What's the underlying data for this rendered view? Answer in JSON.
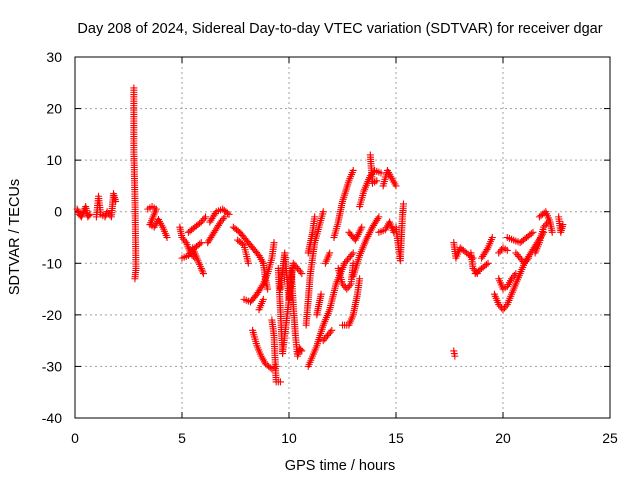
{
  "chart_data": {
    "type": "scatter",
    "title": "Day 208 of 2024, Sidereal Day-to-day VTEC variation (SDTVAR) for receiver dgar",
    "xlabel": "GPS time / hours",
    "ylabel": "SDTVAR / TECUs",
    "xlim": [
      0,
      25
    ],
    "ylim": [
      -40,
      30
    ],
    "xticks": [
      0,
      5,
      10,
      15,
      20,
      25
    ],
    "yticks": [
      -40,
      -30,
      -20,
      -10,
      0,
      10,
      20,
      30
    ],
    "xtick_labels": [
      "0",
      "5",
      "10",
      "15",
      "20",
      "25"
    ],
    "ytick_labels": [
      "-40",
      "-30",
      "-20",
      "-10",
      "0",
      "10",
      "20",
      "30"
    ],
    "grid": true,
    "marker": "+",
    "color": "#ff0000",
    "series": [
      {
        "name": "SDTVAR",
        "segments": [
          [
            [
              0.1,
              0.5
            ],
            [
              0.2,
              -0.5
            ],
            [
              0.3,
              -1
            ],
            [
              0.4,
              0
            ],
            [
              0.5,
              1
            ],
            [
              0.6,
              -1
            ],
            [
              0.7,
              -0.5
            ]
          ],
          [
            [
              1.0,
              -1
            ],
            [
              1.1,
              3
            ],
            [
              1.2,
              -0.5
            ],
            [
              1.4,
              -1
            ],
            [
              1.5,
              0
            ],
            [
              1.7,
              -1
            ],
            [
              1.8,
              3.5
            ],
            [
              1.9,
              2
            ]
          ],
          [
            [
              2.75,
              24
            ],
            [
              2.75,
              12
            ],
            [
              2.8,
              3
            ],
            [
              2.85,
              -11
            ],
            [
              2.8,
              -13
            ]
          ],
          [
            [
              3.4,
              0.5
            ],
            [
              3.6,
              1
            ],
            [
              3.8,
              0.5
            ],
            [
              3.5,
              -2.5
            ],
            [
              3.7,
              -3
            ],
            [
              3.9,
              -1.5
            ],
            [
              4.1,
              -3
            ],
            [
              4.3,
              -5
            ]
          ],
          [
            [
              4.9,
              -3
            ],
            [
              5.0,
              -5
            ],
            [
              5.2,
              -6
            ],
            [
              5.4,
              -8
            ],
            [
              5.6,
              -9
            ]
          ],
          [
            [
              5.0,
              -9
            ],
            [
              5.3,
              -8.5
            ],
            [
              5.6,
              -7
            ],
            [
              5.9,
              -6
            ]
          ],
          [
            [
              5.3,
              -4
            ],
            [
              5.6,
              -3
            ],
            [
              5.9,
              -2
            ],
            [
              6.1,
              -1
            ]
          ],
          [
            [
              5.5,
              -7
            ],
            [
              5.7,
              -9
            ],
            [
              5.9,
              -11
            ],
            [
              6.0,
              -12
            ]
          ],
          [
            [
              6.2,
              -6
            ],
            [
              6.5,
              -4
            ],
            [
              6.8,
              -2
            ],
            [
              7.0,
              -1
            ]
          ],
          [
            [
              6.3,
              -2
            ],
            [
              6.6,
              0
            ],
            [
              6.9,
              0.5
            ],
            [
              7.2,
              -0.5
            ]
          ],
          [
            [
              7.4,
              -3
            ],
            [
              7.7,
              -4
            ],
            [
              8.0,
              -5.5
            ],
            [
              8.3,
              -7
            ],
            [
              8.6,
              -8.5
            ],
            [
              8.8,
              -10
            ]
          ],
          [
            [
              7.6,
              -5.5
            ],
            [
              7.9,
              -6.5
            ],
            [
              8.1,
              -10
            ]
          ],
          [
            [
              7.9,
              -17
            ],
            [
              8.2,
              -17.5
            ],
            [
              8.5,
              -16
            ],
            [
              8.8,
              -14
            ],
            [
              9.0,
              -12
            ],
            [
              9.2,
              -9
            ],
            [
              9.3,
              -6
            ]
          ],
          [
            [
              8.8,
              -10
            ],
            [
              8.9,
              -13
            ],
            [
              9.0,
              -15
            ]
          ],
          [
            [
              8.6,
              -19
            ],
            [
              8.8,
              -17
            ]
          ],
          [
            [
              8.3,
              -23
            ],
            [
              8.5,
              -26
            ],
            [
              8.7,
              -28
            ],
            [
              8.9,
              -29.5
            ],
            [
              9.2,
              -30.5
            ],
            [
              9.4,
              -30
            ]
          ],
          [
            [
              9.2,
              -21
            ],
            [
              9.3,
              -24
            ],
            [
              9.4,
              -33
            ],
            [
              9.6,
              -33
            ]
          ],
          [
            [
              9.6,
              -15
            ],
            [
              9.8,
              -8
            ],
            [
              10.0,
              -17
            ],
            [
              10.1,
              -11
            ],
            [
              10.2,
              -18
            ],
            [
              10.3,
              -24
            ],
            [
              10.4,
              -28
            ],
            [
              10.5,
              -26.5
            ],
            [
              10.6,
              -27
            ]
          ],
          [
            [
              9.5,
              -11
            ],
            [
              9.7,
              -27.5
            ],
            [
              10.2,
              -10
            ],
            [
              10.6,
              -12
            ]
          ],
          [
            [
              10.9,
              -30
            ],
            [
              11.1,
              -28
            ],
            [
              11.3,
              -26
            ],
            [
              11.6,
              -22
            ],
            [
              11.9,
              -19
            ],
            [
              12.2,
              -14
            ],
            [
              12.6,
              -10
            ],
            [
              13.0,
              -8
            ]
          ],
          [
            [
              10.8,
              -22
            ],
            [
              11.0,
              -12
            ],
            [
              11.2,
              -6
            ],
            [
              11.4,
              -3
            ],
            [
              11.6,
              0
            ]
          ],
          [
            [
              10.9,
              -8
            ],
            [
              11.1,
              -4
            ],
            [
              11.2,
              -1
            ]
          ],
          [
            [
              11.3,
              -20
            ],
            [
              11.5,
              -16
            ]
          ],
          [
            [
              11.6,
              -25
            ],
            [
              11.8,
              -24
            ],
            [
              12.0,
              -23
            ]
          ],
          [
            [
              11.7,
              -10
            ],
            [
              11.9,
              -8
            ]
          ],
          [
            [
              12.1,
              -5
            ],
            [
              12.3,
              -2
            ],
            [
              12.5,
              2
            ],
            [
              12.8,
              6
            ],
            [
              13.0,
              8
            ]
          ],
          [
            [
              12.3,
              -11
            ],
            [
              12.5,
              -14
            ],
            [
              12.7,
              -15
            ],
            [
              12.9,
              -14
            ],
            [
              13.0,
              -10
            ]
          ],
          [
            [
              12.5,
              -22
            ],
            [
              12.8,
              -22
            ],
            [
              13.0,
              -20
            ],
            [
              13.2,
              -16
            ],
            [
              13.3,
              -13
            ]
          ],
          [
            [
              12.8,
              -4
            ],
            [
              13.1,
              -5.5
            ],
            [
              13.4,
              -3
            ]
          ],
          [
            [
              13.0,
              -12.5
            ],
            [
              13.3,
              -8.5
            ],
            [
              13.6,
              -5.5
            ],
            [
              13.9,
              -3
            ],
            [
              14.2,
              -1
            ]
          ],
          [
            [
              13.3,
              1
            ],
            [
              13.5,
              4
            ],
            [
              13.8,
              7
            ],
            [
              14.0,
              8
            ],
            [
              14.3,
              7.5
            ]
          ],
          [
            [
              13.8,
              11
            ],
            [
              13.9,
              5.5
            ],
            [
              14.1,
              6
            ]
          ],
          [
            [
              14.2,
              -4
            ],
            [
              14.5,
              -3.5
            ],
            [
              14.7,
              -2
            ],
            [
              14.9,
              -4
            ]
          ],
          [
            [
              14.4,
              5
            ],
            [
              14.6,
              8
            ],
            [
              14.8,
              6.5
            ],
            [
              15.0,
              5
            ]
          ],
          [
            [
              15.0,
              -3
            ],
            [
              15.2,
              -9.5
            ],
            [
              15.3,
              -1
            ],
            [
              15.35,
              1.5
            ]
          ],
          [
            [
              17.7,
              -6
            ],
            [
              17.8,
              -9
            ],
            [
              18.0,
              -7
            ],
            [
              18.3,
              -8
            ],
            [
              18.6,
              -9
            ]
          ],
          [
            [
              17.7,
              -27
            ],
            [
              17.75,
              -28
            ]
          ],
          [
            [
              18.5,
              -8
            ],
            [
              18.6,
              -11
            ],
            [
              18.8,
              -12
            ]
          ],
          [
            [
              19.0,
              -9
            ],
            [
              19.3,
              -7
            ],
            [
              19.5,
              -5
            ]
          ],
          [
            [
              18.7,
              -12
            ],
            [
              19.0,
              -11
            ],
            [
              19.3,
              -10
            ]
          ],
          [
            [
              19.8,
              -8
            ],
            [
              20.0,
              -7
            ],
            [
              20.2,
              -7.5
            ]
          ],
          [
            [
              19.6,
              -16
            ],
            [
              19.8,
              -18
            ],
            [
              20.0,
              -19
            ],
            [
              20.2,
              -18
            ],
            [
              20.4,
              -16
            ],
            [
              20.6,
              -14
            ],
            [
              20.8,
              -12
            ],
            [
              21.0,
              -10
            ],
            [
              21.3,
              -8
            ],
            [
              21.6,
              -6
            ],
            [
              21.9,
              -4
            ]
          ],
          [
            [
              19.8,
              -13
            ],
            [
              20.0,
              -15
            ],
            [
              20.2,
              -14.5
            ],
            [
              20.4,
              -13
            ],
            [
              20.6,
              -12
            ]
          ],
          [
            [
              20.2,
              -5
            ],
            [
              20.5,
              -5.5
            ],
            [
              20.8,
              -6
            ],
            [
              21.1,
              -5
            ],
            [
              21.4,
              -4
            ]
          ],
          [
            [
              20.6,
              -8
            ],
            [
              20.8,
              -9
            ],
            [
              21.0,
              -10
            ],
            [
              21.2,
              -9
            ]
          ],
          [
            [
              21.5,
              -8
            ],
            [
              21.7,
              -6
            ],
            [
              21.9,
              -3
            ],
            [
              22.1,
              -2
            ]
          ],
          [
            [
              21.7,
              -1
            ],
            [
              22.0,
              0
            ],
            [
              22.2,
              -2
            ],
            [
              22.3,
              -4
            ]
          ],
          [
            [
              22.6,
              -1
            ],
            [
              22.7,
              -4
            ],
            [
              22.8,
              -2.5
            ]
          ]
        ]
      }
    ]
  }
}
